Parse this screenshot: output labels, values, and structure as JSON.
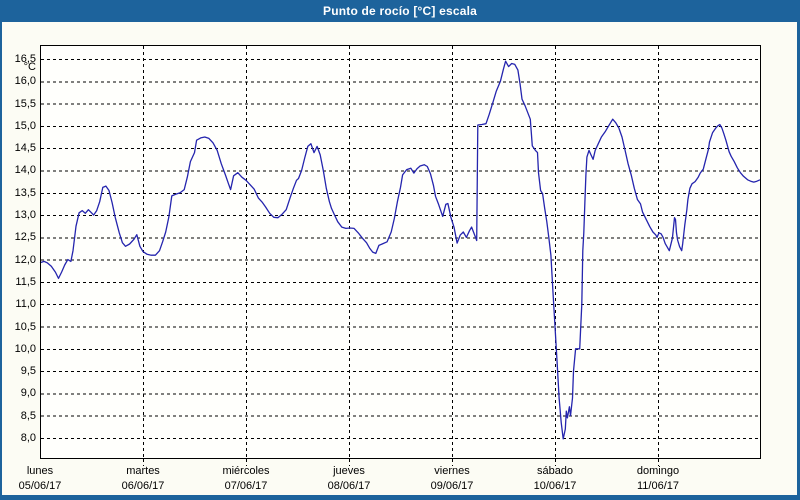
{
  "window": {
    "title": "Punto de rocío [°C] escala"
  },
  "colors": {
    "titlebar": "#1d639c",
    "line": "#2525ae",
    "background": "#fcfcf4",
    "plot_background": "#fffffc",
    "grid": "#000000",
    "text": "#000000"
  },
  "chart_data": {
    "type": "line",
    "title": "Punto de rocío [°C] escala",
    "ylabel": "°C",
    "ylim": [
      8.0,
      16.5
    ],
    "ytick_step": 0.5,
    "ytick_labels": [
      "16,5",
      "16,0",
      "15,5",
      "15,0",
      "14,5",
      "14,0",
      "13,5",
      "13,0",
      "12,5",
      "12,0",
      "11,5",
      "11,0",
      "10,5",
      "10,0",
      "9,5",
      "9,0",
      "8,5",
      "8,0"
    ],
    "grid": "dashed",
    "legend": "none",
    "x_unit": "days",
    "xlim": [
      0,
      7
    ],
    "x_categories": [
      {
        "day": "lunes",
        "date": "05/06/17"
      },
      {
        "day": "martes",
        "date": "06/06/17"
      },
      {
        "day": "miércoles",
        "date": "07/06/17"
      },
      {
        "day": "jueves",
        "date": "08/06/17"
      },
      {
        "day": "viernes",
        "date": "09/06/17"
      },
      {
        "day": "sábado",
        "date": "10/06/17"
      },
      {
        "day": "domingo",
        "date": "11/06/17"
      }
    ],
    "series": [
      {
        "name": "Punto de rocío",
        "color": "#2525ae",
        "points": [
          [
            0.0,
            11.93
          ],
          [
            0.04,
            11.96
          ],
          [
            0.07,
            11.93
          ],
          [
            0.11,
            11.85
          ],
          [
            0.15,
            11.72
          ],
          [
            0.18,
            11.58
          ],
          [
            0.21,
            11.72
          ],
          [
            0.24,
            11.88
          ],
          [
            0.27,
            12.0
          ],
          [
            0.3,
            11.96
          ],
          [
            0.32,
            12.2
          ],
          [
            0.35,
            12.75
          ],
          [
            0.38,
            13.05
          ],
          [
            0.41,
            13.1
          ],
          [
            0.44,
            13.04
          ],
          [
            0.47,
            13.12
          ],
          [
            0.5,
            13.05
          ],
          [
            0.52,
            13.0
          ],
          [
            0.55,
            13.1
          ],
          [
            0.58,
            13.3
          ],
          [
            0.61,
            13.62
          ],
          [
            0.64,
            13.65
          ],
          [
            0.67,
            13.55
          ],
          [
            0.7,
            13.28
          ],
          [
            0.73,
            12.95
          ],
          [
            0.77,
            12.6
          ],
          [
            0.8,
            12.38
          ],
          [
            0.83,
            12.3
          ],
          [
            0.87,
            12.35
          ],
          [
            0.91,
            12.45
          ],
          [
            0.94,
            12.56
          ],
          [
            0.97,
            12.3
          ],
          [
            1.0,
            12.18
          ],
          [
            1.04,
            12.12
          ],
          [
            1.08,
            12.1
          ],
          [
            1.12,
            12.1
          ],
          [
            1.16,
            12.2
          ],
          [
            1.19,
            12.4
          ],
          [
            1.22,
            12.62
          ],
          [
            1.25,
            12.95
          ],
          [
            1.28,
            13.43
          ],
          [
            1.32,
            13.47
          ],
          [
            1.36,
            13.5
          ],
          [
            1.4,
            13.57
          ],
          [
            1.43,
            13.85
          ],
          [
            1.46,
            14.2
          ],
          [
            1.5,
            14.4
          ],
          [
            1.52,
            14.68
          ],
          [
            1.56,
            14.73
          ],
          [
            1.6,
            14.75
          ],
          [
            1.64,
            14.72
          ],
          [
            1.68,
            14.62
          ],
          [
            1.72,
            14.45
          ],
          [
            1.76,
            14.15
          ],
          [
            1.8,
            13.9
          ],
          [
            1.83,
            13.7
          ],
          [
            1.85,
            13.57
          ],
          [
            1.88,
            13.88
          ],
          [
            1.92,
            13.95
          ],
          [
            1.96,
            13.85
          ],
          [
            2.0,
            13.78
          ],
          [
            2.04,
            13.68
          ],
          [
            2.08,
            13.58
          ],
          [
            2.12,
            13.38
          ],
          [
            2.16,
            13.28
          ],
          [
            2.19,
            13.18
          ],
          [
            2.23,
            13.04
          ],
          [
            2.27,
            12.95
          ],
          [
            2.31,
            12.94
          ],
          [
            2.35,
            13.02
          ],
          [
            2.39,
            13.12
          ],
          [
            2.43,
            13.4
          ],
          [
            2.46,
            13.6
          ],
          [
            2.49,
            13.78
          ],
          [
            2.51,
            13.82
          ],
          [
            2.54,
            14.0
          ],
          [
            2.57,
            14.28
          ],
          [
            2.6,
            14.54
          ],
          [
            2.63,
            14.6
          ],
          [
            2.66,
            14.4
          ],
          [
            2.69,
            14.54
          ],
          [
            2.72,
            14.35
          ],
          [
            2.75,
            14.0
          ],
          [
            2.78,
            13.6
          ],
          [
            2.81,
            13.3
          ],
          [
            2.83,
            13.15
          ],
          [
            2.86,
            13.0
          ],
          [
            2.89,
            12.85
          ],
          [
            2.93,
            12.73
          ],
          [
            2.97,
            12.7
          ],
          [
            3.01,
            12.71
          ],
          [
            3.05,
            12.7
          ],
          [
            3.09,
            12.6
          ],
          [
            3.13,
            12.48
          ],
          [
            3.17,
            12.38
          ],
          [
            3.2,
            12.26
          ],
          [
            3.23,
            12.17
          ],
          [
            3.26,
            12.14
          ],
          [
            3.29,
            12.32
          ],
          [
            3.33,
            12.36
          ],
          [
            3.37,
            12.4
          ],
          [
            3.41,
            12.62
          ],
          [
            3.44,
            12.92
          ],
          [
            3.47,
            13.3
          ],
          [
            3.5,
            13.62
          ],
          [
            3.52,
            13.9
          ],
          [
            3.56,
            14.02
          ],
          [
            3.6,
            14.05
          ],
          [
            3.63,
            13.94
          ],
          [
            3.66,
            14.04
          ],
          [
            3.69,
            14.1
          ],
          [
            3.73,
            14.13
          ],
          [
            3.76,
            14.09
          ],
          [
            3.79,
            13.93
          ],
          [
            3.82,
            13.66
          ],
          [
            3.84,
            13.42
          ],
          [
            3.87,
            13.24
          ],
          [
            3.91,
            12.97
          ],
          [
            3.94,
            13.24
          ],
          [
            3.96,
            13.26
          ],
          [
            3.99,
            12.94
          ],
          [
            4.02,
            12.72
          ],
          [
            4.05,
            12.37
          ],
          [
            4.08,
            12.55
          ],
          [
            4.11,
            12.62
          ],
          [
            4.14,
            12.5
          ],
          [
            4.17,
            12.65
          ],
          [
            4.19,
            12.73
          ],
          [
            4.22,
            12.55
          ],
          [
            4.24,
            12.43
          ],
          [
            4.25,
            15.02
          ],
          [
            4.29,
            15.03
          ],
          [
            4.33,
            15.05
          ],
          [
            4.36,
            15.25
          ],
          [
            4.4,
            15.55
          ],
          [
            4.43,
            15.78
          ],
          [
            4.47,
            16.0
          ],
          [
            4.5,
            16.28
          ],
          [
            4.52,
            16.45
          ],
          [
            4.55,
            16.33
          ],
          [
            4.58,
            16.4
          ],
          [
            4.61,
            16.38
          ],
          [
            4.64,
            16.25
          ],
          [
            4.66,
            15.95
          ],
          [
            4.68,
            15.6
          ],
          [
            4.71,
            15.45
          ],
          [
            4.74,
            15.27
          ],
          [
            4.76,
            15.15
          ],
          [
            4.78,
            14.55
          ],
          [
            4.81,
            14.45
          ],
          [
            4.83,
            14.4
          ],
          [
            4.84,
            13.95
          ],
          [
            4.86,
            13.55
          ],
          [
            4.88,
            13.48
          ],
          [
            4.9,
            13.15
          ],
          [
            4.92,
            12.85
          ],
          [
            4.94,
            12.5
          ],
          [
            4.96,
            12.1
          ],
          [
            4.98,
            11.3
          ],
          [
            5.0,
            10.5
          ],
          [
            5.02,
            9.7
          ],
          [
            5.04,
            8.9
          ],
          [
            5.06,
            8.35
          ],
          [
            5.08,
            7.98
          ],
          [
            5.1,
            8.2
          ],
          [
            5.11,
            8.6
          ],
          [
            5.12,
            8.45
          ],
          [
            5.14,
            8.7
          ],
          [
            5.15,
            8.5
          ],
          [
            5.17,
            8.9
          ],
          [
            5.18,
            9.5
          ],
          [
            5.2,
            10.0
          ],
          [
            5.24,
            10.0
          ],
          [
            5.26,
            11.0
          ],
          [
            5.27,
            12.2
          ],
          [
            5.28,
            12.6
          ],
          [
            5.29,
            13.3
          ],
          [
            5.3,
            13.9
          ],
          [
            5.31,
            14.3
          ],
          [
            5.33,
            14.45
          ],
          [
            5.35,
            14.35
          ],
          [
            5.37,
            14.25
          ],
          [
            5.39,
            14.45
          ],
          [
            5.42,
            14.6
          ],
          [
            5.45,
            14.75
          ],
          [
            5.49,
            14.88
          ],
          [
            5.52,
            15.0
          ],
          [
            5.56,
            15.15
          ],
          [
            5.59,
            15.07
          ],
          [
            5.62,
            14.95
          ],
          [
            5.65,
            14.75
          ],
          [
            5.68,
            14.46
          ],
          [
            5.71,
            14.15
          ],
          [
            5.74,
            13.9
          ],
          [
            5.77,
            13.6
          ],
          [
            5.8,
            13.35
          ],
          [
            5.83,
            13.25
          ],
          [
            5.85,
            13.07
          ],
          [
            5.89,
            12.88
          ],
          [
            5.92,
            12.74
          ],
          [
            5.95,
            12.62
          ],
          [
            5.98,
            12.55
          ],
          [
            5.99,
            12.5
          ],
          [
            6.01,
            12.6
          ],
          [
            6.03,
            12.58
          ],
          [
            6.05,
            12.5
          ],
          [
            6.07,
            12.36
          ],
          [
            6.09,
            12.28
          ],
          [
            6.11,
            12.2
          ],
          [
            6.14,
            12.48
          ],
          [
            6.16,
            12.94
          ],
          [
            6.17,
            12.9
          ],
          [
            6.18,
            12.6
          ],
          [
            6.19,
            12.44
          ],
          [
            6.21,
            12.29
          ],
          [
            6.23,
            12.2
          ],
          [
            6.24,
            12.36
          ],
          [
            6.26,
            12.78
          ],
          [
            6.28,
            13.11
          ],
          [
            6.29,
            13.35
          ],
          [
            6.31,
            13.6
          ],
          [
            6.33,
            13.7
          ],
          [
            6.36,
            13.75
          ],
          [
            6.39,
            13.85
          ],
          [
            6.41,
            13.94
          ],
          [
            6.44,
            14.03
          ],
          [
            6.47,
            14.3
          ],
          [
            6.49,
            14.48
          ],
          [
            6.5,
            14.64
          ],
          [
            6.53,
            14.85
          ],
          [
            6.56,
            14.95
          ],
          [
            6.58,
            15.0
          ],
          [
            6.6,
            15.03
          ],
          [
            6.62,
            14.95
          ],
          [
            6.64,
            14.82
          ],
          [
            6.66,
            14.67
          ],
          [
            6.69,
            14.42
          ],
          [
            6.71,
            14.32
          ],
          [
            6.74,
            14.2
          ],
          [
            6.77,
            14.06
          ],
          [
            6.8,
            13.95
          ],
          [
            6.83,
            13.87
          ],
          [
            6.87,
            13.79
          ],
          [
            6.9,
            13.76
          ],
          [
            6.93,
            13.74
          ],
          [
            6.96,
            13.76
          ],
          [
            6.99,
            13.79
          ]
        ]
      }
    ]
  }
}
